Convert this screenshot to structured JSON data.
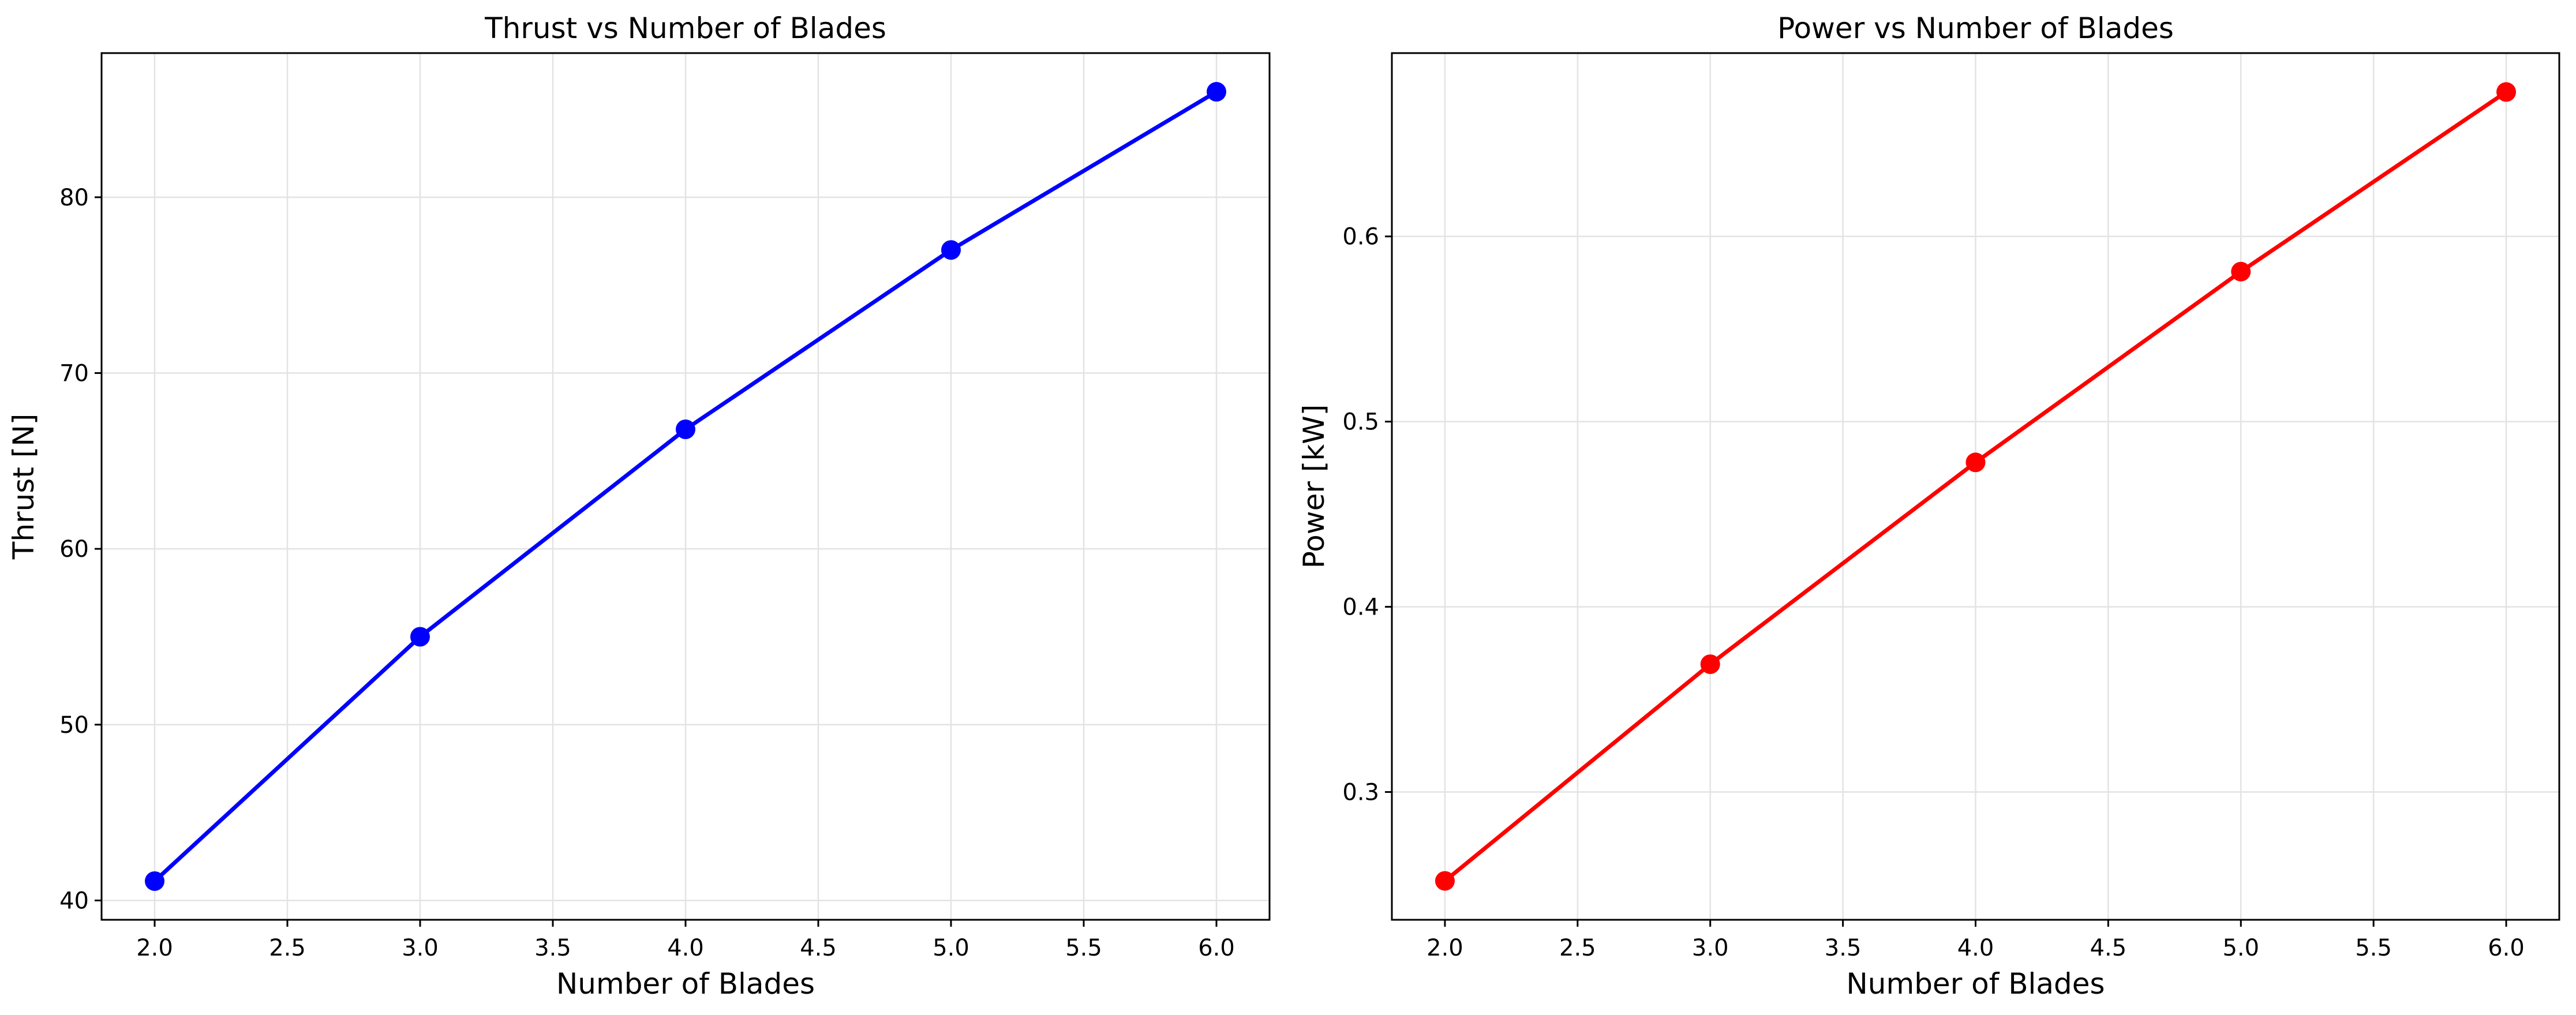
{
  "chart_data": [
    {
      "type": "line",
      "title": "Thrust vs Number of Blades",
      "xlabel": "Number of Blades",
      "ylabel": "Thrust [N]",
      "x": [
        2.0,
        3.0,
        4.0,
        5.0,
        6.0
      ],
      "series": [
        {
          "values": [
            41.1,
            55.0,
            66.8,
            77.0,
            86.0
          ],
          "color": "#0000ff",
          "marker": "circle"
        }
      ],
      "xlim": [
        1.8,
        6.2
      ],
      "ylim": [
        38.9,
        88.2
      ],
      "xticks": [
        2.0,
        2.5,
        3.0,
        3.5,
        4.0,
        4.5,
        5.0,
        5.5,
        6.0
      ],
      "xtick_labels": [
        "2.0",
        "2.5",
        "3.0",
        "3.5",
        "4.0",
        "4.5",
        "5.0",
        "5.5",
        "6.0"
      ],
      "yticks": [
        40,
        50,
        60,
        70,
        80
      ],
      "ytick_labels": [
        "40",
        "50",
        "60",
        "70",
        "80"
      ],
      "grid": true
    },
    {
      "type": "line",
      "title": "Power vs Number of Blades",
      "xlabel": "Number of Blades",
      "ylabel": "Power [kW]",
      "x": [
        2.0,
        3.0,
        4.0,
        5.0,
        6.0
      ],
      "series": [
        {
          "values": [
            0.252,
            0.369,
            0.478,
            0.581,
            0.678
          ],
          "color": "#ff0000",
          "marker": "circle"
        }
      ],
      "xlim": [
        1.8,
        6.2
      ],
      "ylim": [
        0.231,
        0.699
      ],
      "xticks": [
        2.0,
        2.5,
        3.0,
        3.5,
        4.0,
        4.5,
        5.0,
        5.5,
        6.0
      ],
      "xtick_labels": [
        "2.0",
        "2.5",
        "3.0",
        "3.5",
        "4.0",
        "4.5",
        "5.0",
        "5.5",
        "6.0"
      ],
      "yticks": [
        0.3,
        0.4,
        0.5,
        0.6
      ],
      "ytick_labels": [
        "0.3",
        "0.4",
        "0.5",
        "0.6"
      ],
      "grid": true
    }
  ]
}
